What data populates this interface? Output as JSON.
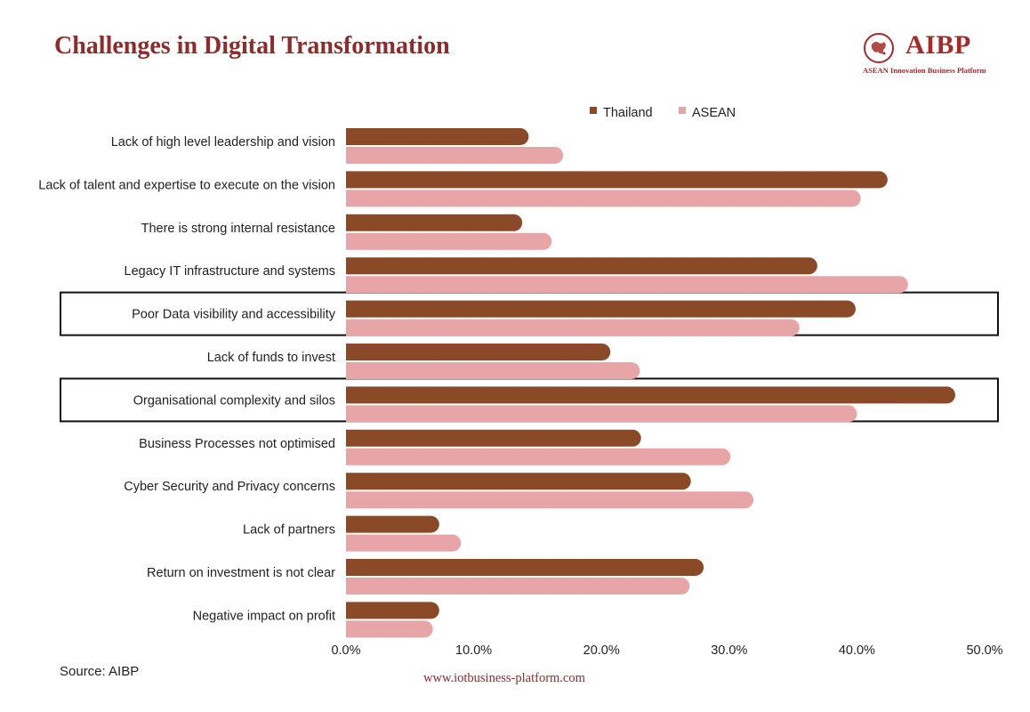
{
  "page": {
    "title": "Challenges in Digital Transformation",
    "source": "Source:  AIBP",
    "footer_url": "www.iotbusiness-platform.com"
  },
  "logo": {
    "name": "AIBP",
    "tagline": "ASEAN Innovation Business Platform",
    "icon": "map-seal-icon",
    "color": "#a52a2a"
  },
  "chart_data": {
    "type": "bar",
    "orientation": "horizontal",
    "title": "Challenges in Digital Transformation",
    "xlabel": "",
    "ylabel": "",
    "xlim": [
      0,
      50
    ],
    "xticks": [
      "0.0%",
      "10.0%",
      "20.0%",
      "30.0%",
      "40.0%",
      "50.0%"
    ],
    "grid": false,
    "legend_position": "top",
    "categories": [
      "Lack of high level leadership and vision",
      "Lack of talent and expertise to execute on the vision",
      "There is strong internal resistance",
      "Legacy IT infrastructure and systems",
      "Poor Data visibility and accessibility",
      "Lack of funds to invest",
      "Organisational complexity and silos",
      "Business Processes not optimised",
      "Cyber Security and Privacy concerns",
      "Lack of partners",
      "Return on investment is not clear",
      "Negative impact on profit"
    ],
    "series": [
      {
        "name": "Thailand",
        "color": "#8a4a27",
        "values": [
          14.3,
          42.4,
          13.8,
          36.9,
          39.9,
          20.7,
          47.7,
          23.1,
          27.0,
          7.3,
          28.0,
          7.3
        ]
      },
      {
        "name": "ASEAN",
        "color": "#e8a5a8",
        "values": [
          17.0,
          40.3,
          16.1,
          44.0,
          35.5,
          23.0,
          40.0,
          30.1,
          31.9,
          9.0,
          26.9,
          6.8
        ]
      }
    ],
    "highlighted_categories": [
      "Poor Data visibility and accessibility",
      "Organisational complexity and silos"
    ]
  }
}
